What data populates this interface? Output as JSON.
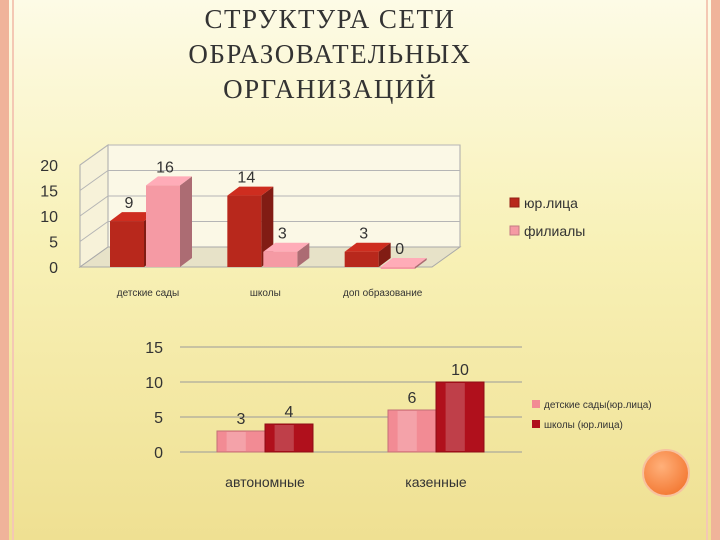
{
  "title_lines": [
    "СТРУКТУРА СЕТИ",
    "ОБРАЗОВАТЕЛЬНЫХ",
    "ОРГАНИЗАЦИЙ"
  ],
  "chart_data": [
    {
      "type": "bar",
      "categories": [
        "детские сады",
        "школы",
        "доп образование"
      ],
      "series": [
        {
          "name": "юр.лица",
          "values": [
            9,
            14,
            3
          ],
          "color": "#b8281c"
        },
        {
          "name": "филиалы",
          "values": [
            16,
            3,
            0
          ],
          "color": "#f59aa4"
        }
      ],
      "yticks": [
        0,
        5,
        10,
        15,
        20
      ],
      "ylim": [
        0,
        20
      ],
      "legend": "right",
      "grid": true
    },
    {
      "type": "bar",
      "categories": [
        "автономные",
        "казенные"
      ],
      "series": [
        {
          "name": "детские сады(юр.лица)",
          "values": [
            3,
            6
          ],
          "color": "#f28b94"
        },
        {
          "name": "школы (юр.лица)",
          "values": [
            4,
            10
          ],
          "color": "#b0101c"
        }
      ],
      "yticks": [
        0,
        5,
        10,
        15
      ],
      "ylim": [
        0,
        15
      ],
      "legend": "right",
      "grid": true
    }
  ]
}
